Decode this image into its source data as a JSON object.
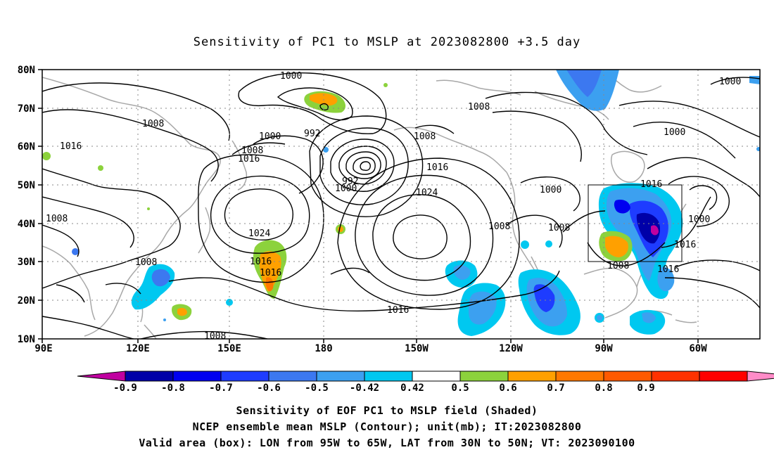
{
  "title": "Sensitivity of PC1 to MSLP at 2023082800 +3.5 day",
  "lat_labels": [
    "80N",
    "70N",
    "60N",
    "50N",
    "40N",
    "30N",
    "20N",
    "10N"
  ],
  "lon_labels": [
    "90E",
    "120E",
    "150E",
    "180",
    "150W",
    "120W",
    "90W",
    "60W"
  ],
  "contour_labels": [
    "1000",
    "1008",
    "1016",
    "1008",
    "1000",
    "992",
    "1008",
    "1016",
    "992",
    "1000",
    "1008",
    "1016",
    "1024",
    "1000",
    "1000",
    "1016",
    "1000",
    "1000",
    "1008",
    "1008",
    "1008",
    "1016",
    "1016",
    "1024",
    "1008",
    "1016",
    "1016",
    "1008",
    "1016",
    "1008"
  ],
  "colorbar": {
    "colors": [
      "#c000a0",
      "#0000a8",
      "#0000f0",
      "#1e3cff",
      "#3c78f0",
      "#3ca0f0",
      "#00c8f0",
      "#ffffff",
      "#8cd23c",
      "#ffa000",
      "#ff7800",
      "#ff5a00",
      "#ff3200",
      "#ff0000",
      "#ff8cc8"
    ],
    "tick_labels": [
      "-0.9",
      "-0.8",
      "-0.7",
      "-0.6",
      "-0.5",
      "-0.42",
      "0.42",
      "0.5",
      "0.6",
      "0.7",
      "0.8",
      "0.9"
    ]
  },
  "box": {
    "lon_west": "95W",
    "lon_east": "65W",
    "lat_south": "30N",
    "lat_north": "50N"
  },
  "captions": {
    "line1": "Sensitivity of EOF PC1 to MSLP field (Shaded)",
    "line2": "NCEP ensemble mean MSLP (Contour); unit(mb); IT:2023082800",
    "line3": "Valid area (box): LON from 95W to 65W, LAT from 30N to 50N; VT: 2023090100"
  }
}
